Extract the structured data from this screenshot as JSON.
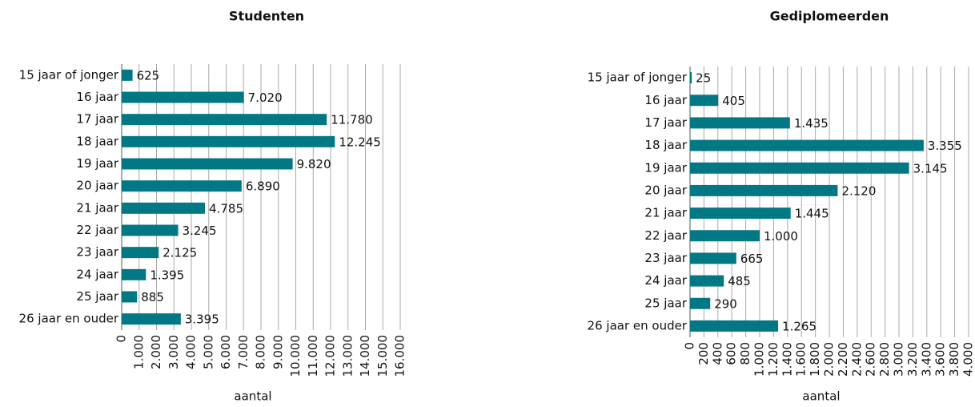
{
  "chart_data": [
    {
      "type": "barh",
      "title": "Studenten",
      "xlabel": "aantal",
      "color": "#037885",
      "grid": true,
      "categories": [
        "15 jaar of jonger",
        "16 jaar",
        "17 jaar",
        "18 jaar",
        "19 jaar",
        "20 jaar",
        "21 jaar",
        "22 jaar",
        "23 jaar",
        "24 jaar",
        "25 jaar",
        "26 jaar en ouder"
      ],
      "values": [
        625,
        7020,
        11780,
        12245,
        9820,
        6890,
        4785,
        3245,
        2125,
        1395,
        885,
        3395
      ],
      "value_labels": [
        "625",
        "7.020",
        "11.780",
        "12.245",
        "9.820",
        "6.890",
        "4.785",
        "3.245",
        "2.125",
        "1.395",
        "885",
        "3.395"
      ],
      "xlim": [
        0,
        16000
      ],
      "xticks": [
        0,
        {
          "value": 1000,
          "label": "1.000"
        },
        {
          "value": 2000,
          "label": "2.000"
        },
        {
          "value": 3000,
          "label": "3.000"
        },
        {
          "value": 4000,
          "label": "4.000"
        },
        {
          "value": 5000,
          "label": "5.000"
        },
        {
          "value": 6000,
          "label": "6.000"
        },
        {
          "value": 7000,
          "label": "7.000"
        },
        {
          "value": 8000,
          "label": "8.000"
        },
        {
          "value": 9000,
          "label": "9.000"
        },
        {
          "value": 10000,
          "label": "10.000"
        },
        {
          "value": 11000,
          "label": "11.000"
        },
        {
          "value": 12000,
          "label": "12.000"
        },
        {
          "value": 13000,
          "label": "13.000"
        },
        {
          "value": 14000,
          "label": "14.000"
        },
        {
          "value": 15000,
          "label": "15.000"
        },
        {
          "value": 16000,
          "label": "16.000"
        }
      ]
    },
    {
      "type": "barh",
      "title": "Gediplomeerden",
      "xlabel": "aantal",
      "color": "#037885",
      "grid": true,
      "categories": [
        "15 jaar of jonger",
        "16 jaar",
        "17 jaar",
        "18 jaar",
        "19 jaar",
        "20 jaar",
        "21 jaar",
        "22 jaar",
        "23 jaar",
        "24 jaar",
        "25 jaar",
        "26 jaar en ouder"
      ],
      "values": [
        25,
        405,
        1435,
        3355,
        3145,
        2120,
        1445,
        1000,
        665,
        485,
        290,
        1265
      ],
      "value_labels": [
        "25",
        "405",
        "1.435",
        "3.355",
        "3.145",
        "2.120",
        "1.445",
        "1.000",
        "665",
        "485",
        "290",
        "1.265"
      ],
      "xlim": [
        0,
        4000
      ],
      "xticks": [
        0,
        200,
        400,
        600,
        800,
        {
          "value": 1000,
          "label": "1.000"
        },
        {
          "value": 1200,
          "label": "1.200"
        },
        {
          "value": 1400,
          "label": "1.400"
        },
        {
          "value": 1600,
          "label": "1.600"
        },
        {
          "value": 1800,
          "label": "1.800"
        },
        {
          "value": 2000,
          "label": "2.000"
        },
        {
          "value": 2200,
          "label": "2.200"
        },
        {
          "value": 2400,
          "label": "2.400"
        },
        {
          "value": 2600,
          "label": "2.600"
        },
        {
          "value": 2800,
          "label": "2.800"
        },
        {
          "value": 3000,
          "label": "3.000"
        },
        {
          "value": 3200,
          "label": "3.200"
        },
        {
          "value": 3400,
          "label": "3.400"
        },
        {
          "value": 3600,
          "label": "3.600"
        },
        {
          "value": 3800,
          "label": "3.800"
        },
        {
          "value": 4000,
          "label": "4.000"
        }
      ]
    }
  ]
}
